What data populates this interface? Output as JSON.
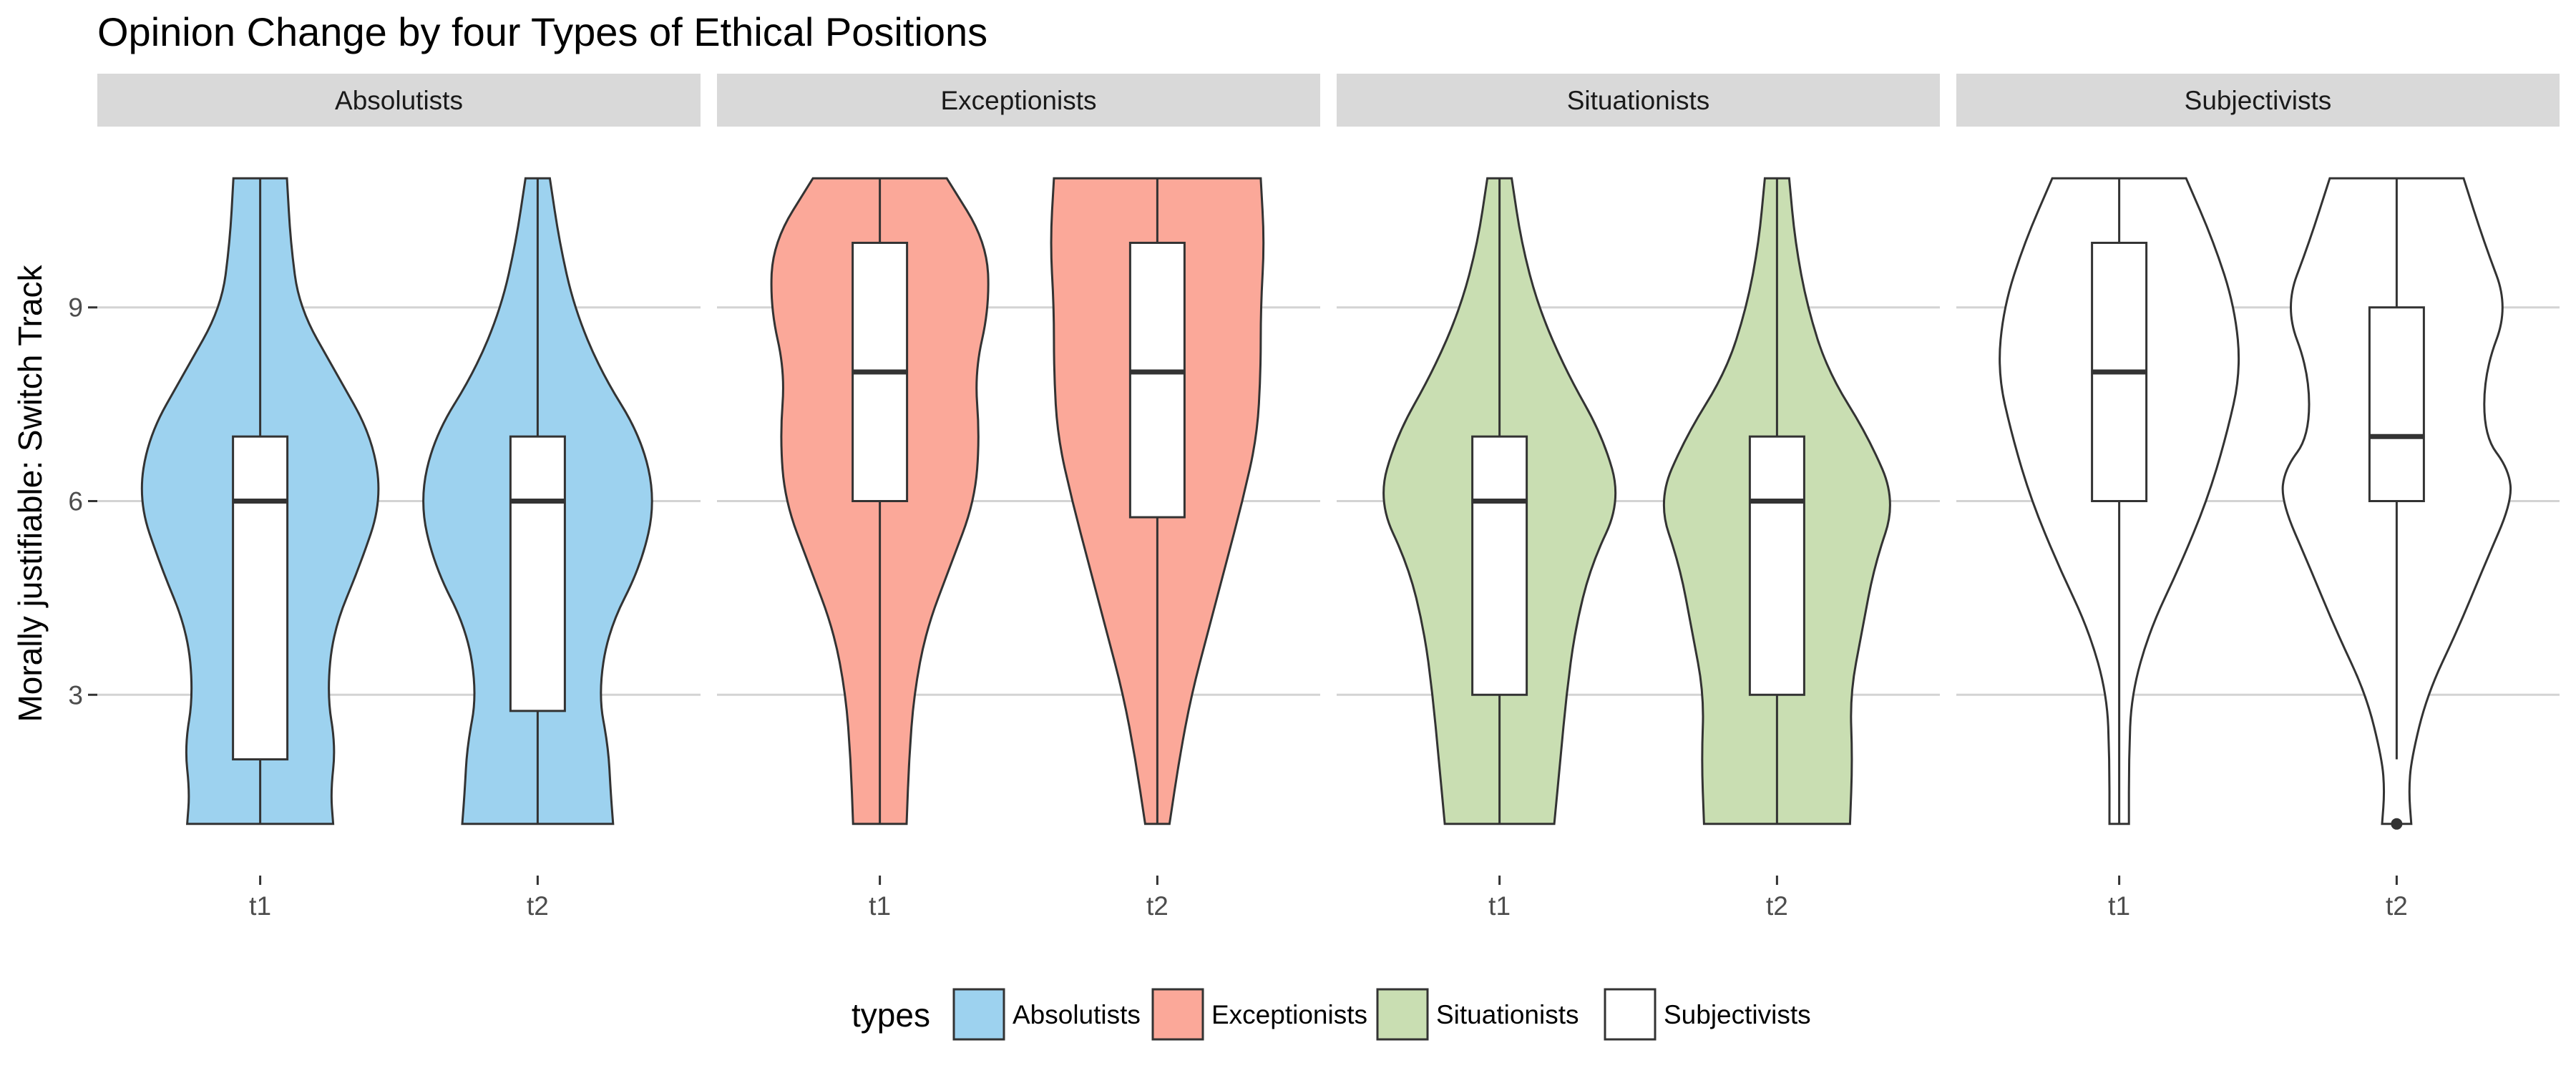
{
  "chart_data": {
    "type": "violin",
    "title": "Opinion Change by four Types of Ethical Positions",
    "ylabel": "Morally justifiable: Switch Track",
    "xlabel": "",
    "ylim": [
      0.2,
      11.8
    ],
    "y_ticks": [
      3,
      6,
      9
    ],
    "y_tick_labels": [
      "3",
      "6",
      "9"
    ],
    "x_categories": [
      "t1",
      "t2"
    ],
    "grid": true,
    "legend": {
      "title": "types",
      "position": "bottom",
      "items": [
        {
          "label": "Absolutists",
          "color": "#9dd2ef"
        },
        {
          "label": "Exceptionists",
          "color": "#fba899"
        },
        {
          "label": "Situationists",
          "color": "#c9deb2"
        },
        {
          "label": "Subjectivists",
          "color": "#ffffff"
        }
      ]
    },
    "facets": [
      {
        "name": "Absolutists",
        "color": "#9dd2ef",
        "groups": [
          {
            "x": "t1",
            "box": {
              "q1": 2,
              "median": 6,
              "q3": 7,
              "whisker_low": 1,
              "whisker_high": 11
            },
            "density": [
              [
                1,
                0.6
              ],
              [
                1.5,
                0.58
              ],
              [
                2.2,
                0.62
              ],
              [
                3,
                0.55
              ],
              [
                4,
                0.6
              ],
              [
                5,
                0.82
              ],
              [
                6,
                1.0
              ],
              [
                7,
                0.92
              ],
              [
                8,
                0.62
              ],
              [
                9,
                0.32
              ],
              [
                10,
                0.25
              ],
              [
                11,
                0.22
              ]
            ]
          },
          {
            "x": "t2",
            "box": {
              "q1": 2.75,
              "median": 6,
              "q3": 7,
              "whisker_low": 1,
              "whisker_high": 11
            },
            "density": [
              [
                1,
                0.62
              ],
              [
                1.5,
                0.6
              ],
              [
                2.2,
                0.58
              ],
              [
                3,
                0.5
              ],
              [
                4,
                0.58
              ],
              [
                5,
                0.85
              ],
              [
                6,
                0.97
              ],
              [
                7,
                0.85
              ],
              [
                8,
                0.52
              ],
              [
                9,
                0.3
              ],
              [
                10,
                0.18
              ],
              [
                11,
                0.1
              ]
            ]
          }
        ]
      },
      {
        "name": "Exceptionists",
        "color": "#fba899",
        "groups": [
          {
            "x": "t1",
            "box": {
              "q1": 6,
              "median": 8,
              "q3": 10,
              "whisker_low": 1,
              "whisker_high": 11
            },
            "density": [
              [
                1,
                0.22
              ],
              [
                2,
                0.24
              ],
              [
                3,
                0.28
              ],
              [
                4,
                0.38
              ],
              [
                5,
                0.58
              ],
              [
                6,
                0.78
              ],
              [
                7,
                0.82
              ],
              [
                8,
                0.78
              ],
              [
                9,
                0.9
              ],
              [
                10,
                0.88
              ],
              [
                11,
                0.55
              ]
            ]
          },
          {
            "x": "t2",
            "box": {
              "q1": 5.75,
              "median": 8,
              "q3": 10,
              "whisker_low": 1,
              "whisker_high": 11
            },
            "density": [
              [
                1,
                0.1
              ],
              [
                2,
                0.18
              ],
              [
                3,
                0.28
              ],
              [
                4,
                0.42
              ],
              [
                5,
                0.56
              ],
              [
                6,
                0.7
              ],
              [
                7,
                0.82
              ],
              [
                8,
                0.85
              ],
              [
                9,
                0.85
              ],
              [
                10,
                0.88
              ],
              [
                11,
                0.85
              ]
            ]
          }
        ]
      },
      {
        "name": "Situationists",
        "color": "#c9deb2",
        "groups": [
          {
            "x": "t1",
            "box": {
              "q1": 3,
              "median": 6,
              "q3": 7,
              "whisker_low": 1,
              "whisker_high": 11
            },
            "density": [
              [
                1,
                0.45
              ],
              [
                2,
                0.5
              ],
              [
                3,
                0.55
              ],
              [
                4,
                0.62
              ],
              [
                5,
                0.75
              ],
              [
                6,
                1.0
              ],
              [
                7,
                0.85
              ],
              [
                8,
                0.55
              ],
              [
                9,
                0.32
              ],
              [
                10,
                0.18
              ],
              [
                11,
                0.1
              ]
            ]
          },
          {
            "x": "t2",
            "box": {
              "q1": 3,
              "median": 6,
              "q3": 7,
              "whisker_low": 1,
              "whisker_high": 11
            },
            "density": [
              [
                1,
                0.6
              ],
              [
                2,
                0.62
              ],
              [
                3,
                0.6
              ],
              [
                4,
                0.7
              ],
              [
                5,
                0.8
              ],
              [
                6,
                0.98
              ],
              [
                7,
                0.75
              ],
              [
                8,
                0.42
              ],
              [
                9,
                0.25
              ],
              [
                10,
                0.15
              ],
              [
                11,
                0.1
              ]
            ]
          }
        ]
      },
      {
        "name": "Subjectivists",
        "color": "#ffffff",
        "groups": [
          {
            "x": "t1",
            "box": {
              "q1": 6,
              "median": 8,
              "q3": 10,
              "whisker_low": 1,
              "whisker_high": 11
            },
            "density": [
              [
                1,
                0.08
              ],
              [
                2,
                0.08
              ],
              [
                3,
                0.1
              ],
              [
                4,
                0.25
              ],
              [
                5,
                0.5
              ],
              [
                6,
                0.72
              ],
              [
                7,
                0.88
              ],
              [
                8,
                1.0
              ],
              [
                9,
                0.95
              ],
              [
                10,
                0.78
              ],
              [
                11,
                0.55
              ]
            ]
          },
          {
            "x": "t2",
            "box": {
              "q1": 6,
              "median": 7,
              "q3": 9,
              "whisker_low": 2,
              "whisker_high": 11
            },
            "density": [
              [
                1,
                0.12
              ],
              [
                1.5,
                0.1
              ],
              [
                2,
                0.12
              ],
              [
                3,
                0.25
              ],
              [
                4,
                0.5
              ],
              [
                5,
                0.72
              ],
              [
                6,
                0.95
              ],
              [
                6.5,
                0.92
              ],
              [
                7,
                0.72
              ],
              [
                8,
                0.72
              ],
              [
                9,
                0.92
              ],
              [
                10,
                0.72
              ],
              [
                11,
                0.55
              ]
            ],
            "outliers": [
              1
            ]
          }
        ]
      }
    ]
  }
}
